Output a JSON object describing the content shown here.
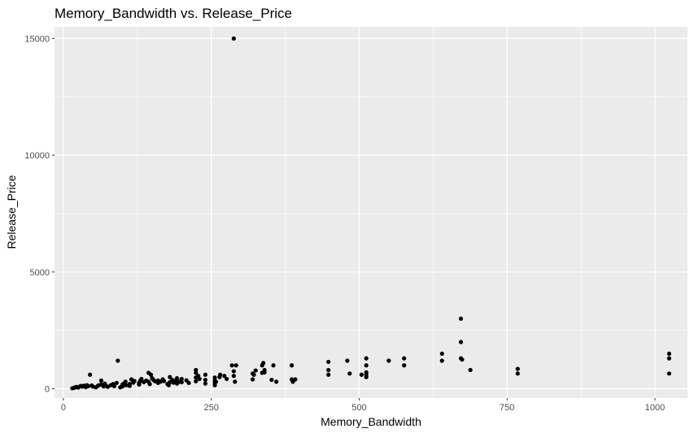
{
  "chart_data": {
    "type": "scatter",
    "title": "Memory_Bandwidth vs. Release_Price",
    "xlabel": "Memory_Bandwidth",
    "ylabel": "Release_Price",
    "xlim": [
      -15,
      1055
    ],
    "ylim": [
      -400,
      15500
    ],
    "x_ticks": [
      0,
      250,
      500,
      750,
      1000
    ],
    "x_tick_labels": [
      "0",
      "250",
      "500",
      "750",
      "1000"
    ],
    "y_ticks": [
      0,
      5000,
      10000,
      15000
    ],
    "y_tick_labels": [
      "0",
      "5000",
      "10000",
      "15000"
    ],
    "grid": true,
    "panel_background": "#ebebeb",
    "grid_color": "#ffffff",
    "point_color": "#000000",
    "points": [
      [
        15,
        20
      ],
      [
        18,
        40
      ],
      [
        20,
        60
      ],
      [
        22,
        80
      ],
      [
        25,
        50
      ],
      [
        28,
        100
      ],
      [
        30,
        120
      ],
      [
        32,
        90
      ],
      [
        35,
        130
      ],
      [
        38,
        70
      ],
      [
        40,
        150
      ],
      [
        42,
        110
      ],
      [
        45,
        600
      ],
      [
        48,
        140
      ],
      [
        50,
        90
      ],
      [
        55,
        60
      ],
      [
        58,
        120
      ],
      [
        60,
        150
      ],
      [
        64,
        180
      ],
      [
        64,
        350
      ],
      [
        68,
        100
      ],
      [
        70,
        220
      ],
      [
        72,
        130
      ],
      [
        75,
        80
      ],
      [
        80,
        150
      ],
      [
        84,
        200
      ],
      [
        86,
        110
      ],
      [
        90,
        250
      ],
      [
        92,
        1200
      ],
      [
        96,
        60
      ],
      [
        100,
        100
      ],
      [
        100,
        180
      ],
      [
        102,
        220
      ],
      [
        105,
        300
      ],
      [
        106,
        150
      ],
      [
        112,
        120
      ],
      [
        112,
        200
      ],
      [
        115,
        400
      ],
      [
        118,
        260
      ],
      [
        120,
        330
      ],
      [
        128,
        250
      ],
      [
        128,
        180
      ],
      [
        130,
        340
      ],
      [
        132,
        420
      ],
      [
        136,
        280
      ],
      [
        140,
        350
      ],
      [
        144,
        300
      ],
      [
        144,
        680
      ],
      [
        146,
        200
      ],
      [
        148,
        600
      ],
      [
        150,
        450
      ],
      [
        152,
        380
      ],
      [
        155,
        320
      ],
      [
        160,
        350
      ],
      [
        160,
        250
      ],
      [
        164,
        300
      ],
      [
        168,
        400
      ],
      [
        170,
        330
      ],
      [
        176,
        200
      ],
      [
        178,
        150
      ],
      [
        180,
        280
      ],
      [
        180,
        500
      ],
      [
        184,
        380
      ],
      [
        186,
        260
      ],
      [
        190,
        350
      ],
      [
        192,
        220
      ],
      [
        192,
        450
      ],
      [
        196,
        300
      ],
      [
        200,
        420
      ],
      [
        200,
        280
      ],
      [
        208,
        360
      ],
      [
        212,
        250
      ],
      [
        224,
        320
      ],
      [
        224,
        480
      ],
      [
        224,
        680
      ],
      [
        224,
        800
      ],
      [
        228,
        550
      ],
      [
        230,
        420
      ],
      [
        240,
        380
      ],
      [
        240,
        220
      ],
      [
        240,
        600
      ],
      [
        256,
        350
      ],
      [
        256,
        250
      ],
      [
        256,
        150
      ],
      [
        256,
        480
      ],
      [
        258,
        300
      ],
      [
        264,
        500
      ],
      [
        265,
        600
      ],
      [
        272,
        550
      ],
      [
        276,
        420
      ],
      [
        285,
        1000
      ],
      [
        288,
        15000
      ],
      [
        288,
        750
      ],
      [
        288,
        550
      ],
      [
        290,
        300
      ],
      [
        292,
        1000
      ],
      [
        320,
        400
      ],
      [
        320,
        650
      ],
      [
        322,
        600
      ],
      [
        325,
        780
      ],
      [
        336,
        680
      ],
      [
        336,
        1000
      ],
      [
        338,
        1100
      ],
      [
        340,
        800
      ],
      [
        340,
        700
      ],
      [
        352,
        380
      ],
      [
        355,
        1000
      ],
      [
        360,
        300
      ],
      [
        386,
        1000
      ],
      [
        386,
        400
      ],
      [
        388,
        300
      ],
      [
        392,
        400
      ],
      [
        448,
        1150
      ],
      [
        448,
        800
      ],
      [
        448,
        600
      ],
      [
        480,
        1200
      ],
      [
        484,
        650
      ],
      [
        504,
        600
      ],
      [
        512,
        1300
      ],
      [
        512,
        1000
      ],
      [
        512,
        700
      ],
      [
        512,
        600
      ],
      [
        512,
        500
      ],
      [
        550,
        1200
      ],
      [
        576,
        1300
      ],
      [
        576,
        1000
      ],
      [
        640,
        1500
      ],
      [
        640,
        1200
      ],
      [
        672,
        3000
      ],
      [
        672,
        2000
      ],
      [
        672,
        1300
      ],
      [
        674,
        1250
      ],
      [
        688,
        800
      ],
      [
        768,
        850
      ],
      [
        768,
        650
      ],
      [
        1024,
        1500
      ],
      [
        1024,
        1300
      ],
      [
        1024,
        650
      ]
    ]
  }
}
